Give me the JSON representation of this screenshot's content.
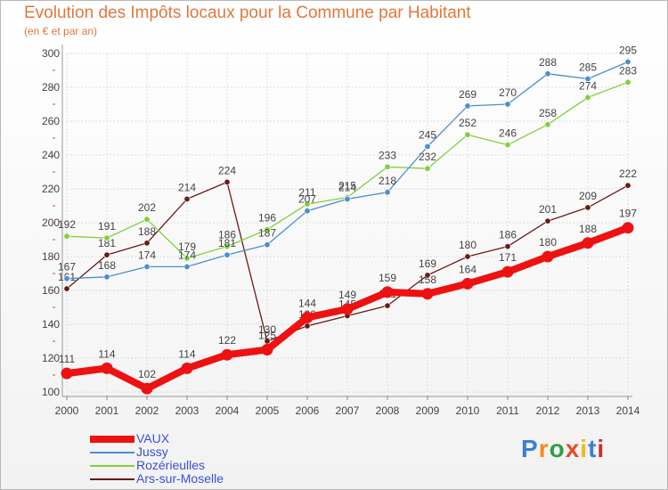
{
  "title": "Evolution des Impôts locaux pour la Commune par Habitant",
  "subtitle": "(en € et par an)",
  "logo": "Proxiti",
  "chart_data": {
    "type": "line",
    "x": [
      "2000",
      "2001",
      "2002",
      "2003",
      "2004",
      "2005",
      "2006",
      "2007",
      "2008",
      "2009",
      "2010",
      "2011",
      "2012",
      "2013",
      "2014"
    ],
    "ylim": [
      100,
      300
    ],
    "yticks": [
      100,
      120,
      140,
      160,
      180,
      200,
      220,
      240,
      260,
      280,
      300
    ],
    "grid": true,
    "legend_position": "bottom-left",
    "series": [
      {
        "name": "Ars-sur-Moselle",
        "color": "#6b1a1a",
        "values": [
          161,
          181,
          188,
          214,
          224,
          130,
          139,
          145,
          151,
          169,
          180,
          186,
          201,
          209,
          222
        ]
      },
      {
        "name": "Rozérieulles",
        "color": "#7fd13b",
        "values": [
          192,
          191,
          202,
          179,
          186,
          196,
          211,
          215,
          233,
          232,
          252,
          246,
          258,
          274,
          283
        ]
      },
      {
        "name": "Jussy",
        "color": "#4a8fd0",
        "values": [
          167,
          168,
          174,
          174,
          181,
          187,
          207,
          214,
          218,
          245,
          269,
          270,
          288,
          285,
          295
        ]
      },
      {
        "name": "VAUX",
        "color": "#ee1111",
        "values": [
          111,
          114,
          102,
          114,
          122,
          125,
          144,
          149,
          159,
          158,
          164,
          171,
          180,
          188,
          197
        ]
      }
    ]
  }
}
